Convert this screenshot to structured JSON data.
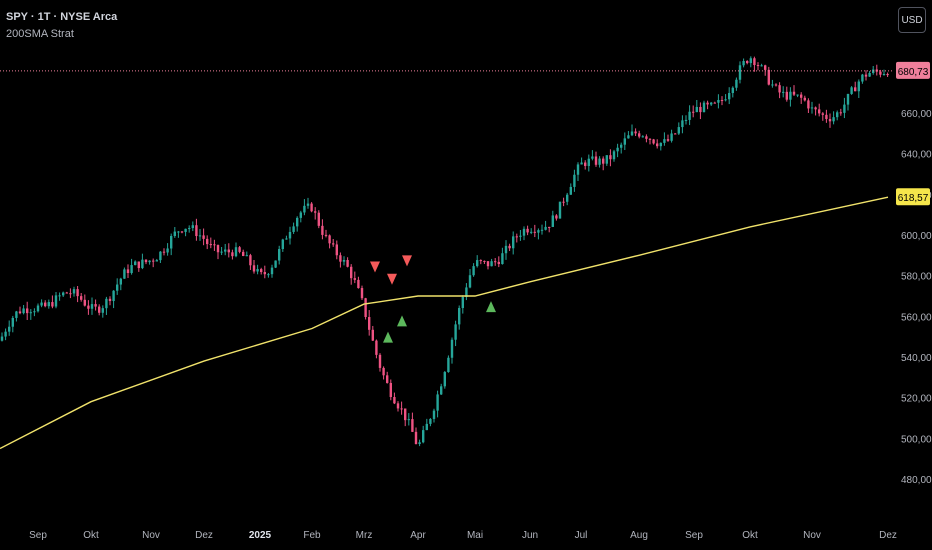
{
  "header": {
    "symbol_line": "SPY · 1T · NYSE Arca",
    "indicator_name": "200SMA Strat",
    "currency_button": "USD"
  },
  "colors": {
    "background": "#000000",
    "bull_candle": "#26a69a",
    "bear_candle": "#ef5383",
    "sma_line": "#f0e26b",
    "buy_signal": "#5cb85c",
    "sell_signal": "#f55a5a",
    "last_price_badge": "#ef7f9b",
    "sma_badge": "#f5e64b",
    "axis_text": "#b2b5be"
  },
  "chart_data": {
    "type": "candlestick",
    "y_axis_ticks": [
      "660,00",
      "640,00",
      "620,00",
      "600,00",
      "580,00",
      "560,00",
      "540,00",
      "520,00",
      "500,00",
      "480,00"
    ],
    "y_axis_tick_values": [
      660,
      640,
      620,
      600,
      580,
      560,
      540,
      520,
      500,
      480
    ],
    "ylim": [
      470,
      695
    ],
    "x_axis_labels": [
      "Sep",
      "Okt",
      "Nov",
      "Dez",
      "2025",
      "Feb",
      "Mrz",
      "Apr",
      "Mai",
      "Jun",
      "Jul",
      "Aug",
      "Sep",
      "Okt",
      "Nov",
      "Dez"
    ],
    "x_label_bold": "2025",
    "last_price_label": "680,73",
    "last_price": 680.73,
    "sma_label": "618,57",
    "sma_value": 618.57,
    "price_path": [
      {
        "month": "Aug 2024",
        "close": 548
      },
      {
        "month": "Sep 2024",
        "close": 563
      },
      {
        "month": "Okt 2024",
        "close": 570
      },
      {
        "month": "Nov 2024",
        "close": 590
      },
      {
        "month": "Dez 2024",
        "close": 598
      },
      {
        "month": "2025",
        "close": 587
      },
      {
        "month": "Feb 2025",
        "close": 610
      },
      {
        "month": "Mrz 2025",
        "close": 563
      },
      {
        "month": "Apr 2025",
        "close": 496
      },
      {
        "month": "Mai 2025",
        "close": 579
      },
      {
        "month": "Jun 2025",
        "close": 605
      },
      {
        "month": "Jul 2025",
        "close": 630
      },
      {
        "month": "Aug 2025",
        "close": 644
      },
      {
        "month": "Sep 2025",
        "close": 662
      },
      {
        "month": "Okt 2025",
        "close": 679
      },
      {
        "month": "Nov 2025",
        "close": 662
      },
      {
        "month": "Dez 2025",
        "close": 681
      }
    ],
    "sma_path": [
      {
        "month": "Aug 2024",
        "value": 495
      },
      {
        "month": "Okt 2024",
        "value": 518
      },
      {
        "month": "Dez 2024",
        "value": 538
      },
      {
        "month": "Feb 2025",
        "value": 554
      },
      {
        "month": "Mrz 2025",
        "value": 566
      },
      {
        "month": "Apr 2025",
        "value": 570
      },
      {
        "month": "Mai 2025",
        "value": 570
      },
      {
        "month": "Jun 2025",
        "value": 577
      },
      {
        "month": "Aug 2025",
        "value": 590
      },
      {
        "month": "Okt 2025",
        "value": 604
      },
      {
        "month": "Dez 2025",
        "value": 618.57
      }
    ],
    "signals": [
      {
        "type": "sell",
        "month": "Mrz 2025",
        "value": 584
      },
      {
        "type": "sell",
        "month": "Mrz 2025",
        "value": 578
      },
      {
        "type": "sell",
        "month": "Mrz 2025",
        "value": 587
      },
      {
        "type": "buy",
        "month": "Mrz 2025",
        "value": 550
      },
      {
        "type": "buy",
        "month": "Mrz 2025",
        "value": 558
      },
      {
        "type": "buy",
        "month": "Mai 2025",
        "value": 565
      }
    ],
    "grid": false,
    "legend_position": "top-left"
  }
}
